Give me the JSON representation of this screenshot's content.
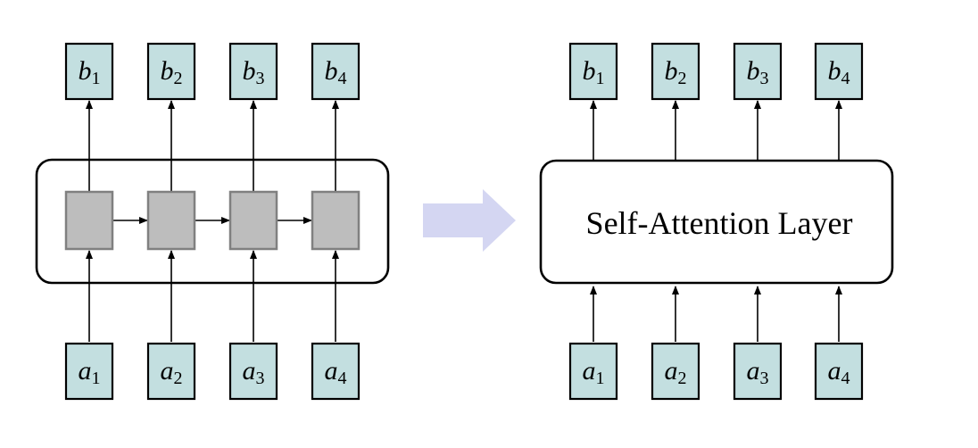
{
  "left_panel": {
    "outputs": [
      {
        "symbol": "b",
        "index": "1"
      },
      {
        "symbol": "b",
        "index": "2"
      },
      {
        "symbol": "b",
        "index": "3"
      },
      {
        "symbol": "b",
        "index": "4"
      }
    ],
    "inputs": [
      {
        "symbol": "a",
        "index": "1"
      },
      {
        "symbol": "a",
        "index": "2"
      },
      {
        "symbol": "a",
        "index": "3"
      },
      {
        "symbol": "a",
        "index": "4"
      }
    ]
  },
  "right_panel": {
    "layer_label": "Self-Attention Layer",
    "outputs": [
      {
        "symbol": "b",
        "index": "1"
      },
      {
        "symbol": "b",
        "index": "2"
      },
      {
        "symbol": "b",
        "index": "3"
      },
      {
        "symbol": "b",
        "index": "4"
      }
    ],
    "inputs": [
      {
        "symbol": "a",
        "index": "1"
      },
      {
        "symbol": "a",
        "index": "2"
      },
      {
        "symbol": "a",
        "index": "3"
      },
      {
        "symbol": "a",
        "index": "4"
      }
    ]
  },
  "colors": {
    "io_box_fill": "#c3dfe0",
    "rnn_cell_fill": "#bdbdbd",
    "transition_arrow": "#d4d6f2"
  }
}
